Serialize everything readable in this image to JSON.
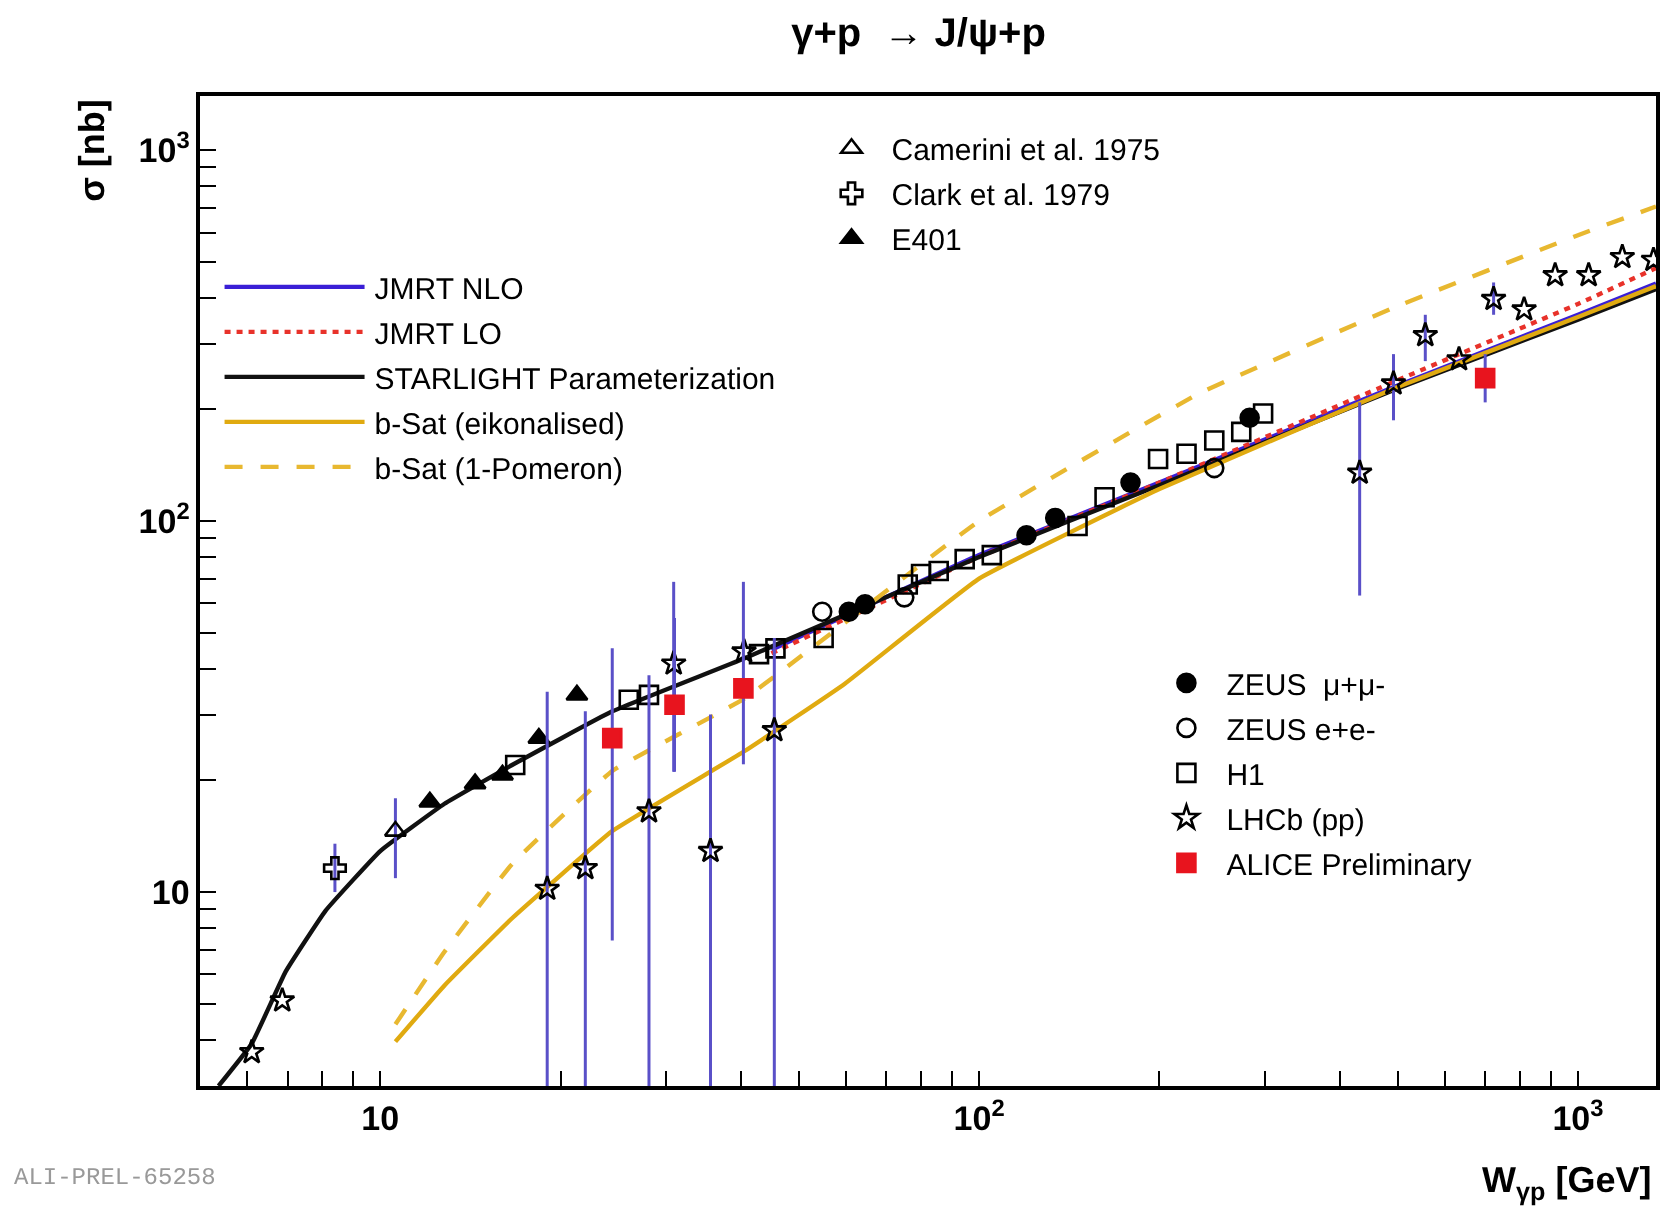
{
  "chart_data": {
    "type": "scatter",
    "title": "γ+p  → J/ψ+p",
    "xlabel": "W$_{γp}$ [GeV]",
    "ylabel": "σ [nb]",
    "log": "xy",
    "legend": "top left",
    "xlim": [
      5,
      1350
    ],
    "ylim": [
      3,
      1400
    ],
    "xticks": [
      {
        "value": 5,
        "label": null
      },
      {
        "value": 6,
        "label": null
      },
      {
        "value": 7,
        "label": null
      },
      {
        "value": 8,
        "label": null
      },
      {
        "value": 9,
        "label": null
      },
      10,
      {
        "value": 20,
        "label": null
      },
      {
        "value": 30,
        "label": null
      },
      {
        "value": 40,
        "label": null
      },
      {
        "value": 50,
        "label": null
      },
      {
        "value": 60,
        "label": null
      },
      {
        "value": 70,
        "label": null
      },
      {
        "value": 80,
        "label": null
      },
      {
        "value": 90,
        "label": null
      },
      {
        "value": 100,
        "label": "10$^{2}$"
      },
      {
        "value": 200,
        "label": null
      },
      {
        "value": 300,
        "label": null
      },
      {
        "value": 400,
        "label": null
      },
      {
        "value": 500,
        "label": null
      },
      {
        "value": 600,
        "label": null
      },
      {
        "value": 700,
        "label": null
      },
      {
        "value": 800,
        "label": null
      },
      {
        "value": 900,
        "label": null
      },
      {
        "value": 1000,
        "label": "10$^{3}$"
      }
    ],
    "yticks": [
      {
        "value": 3,
        "label": null
      },
      {
        "value": 4,
        "label": null
      },
      {
        "value": 5,
        "label": null
      },
      {
        "value": 6,
        "label": null
      },
      {
        "value": 7,
        "label": null
      },
      {
        "value": 8,
        "label": null
      },
      {
        "value": 9,
        "label": null
      },
      10,
      {
        "value": 20,
        "label": null
      },
      {
        "value": 30,
        "label": null
      },
      {
        "value": 40,
        "label": null
      },
      {
        "value": 50,
        "label": null
      },
      {
        "value": 60,
        "label": null
      },
      {
        "value": 70,
        "label": null
      },
      {
        "value": 80,
        "label": null
      },
      {
        "value": 90,
        "label": null
      },
      {
        "value": 100,
        "label": "10$^{2}$"
      },
      {
        "value": 200,
        "label": null
      },
      {
        "value": 300,
        "label": null
      },
      {
        "value": 400,
        "label": null
      },
      {
        "value": 500,
        "label": null
      },
      {
        "value": 600,
        "label": null
      },
      {
        "value": 700,
        "label": null
      },
      {
        "value": 800,
        "label": null
      },
      {
        "value": 900,
        "label": null
      },
      {
        "value": 1000,
        "label": "10$^{3}$"
      }
    ],
    "annotations": [
      "ALI-PREL-65258"
    ],
    "series": [
      {
        "name": "JMRT NLO",
        "type": "line",
        "line_style": "solid",
        "color": "#3a1fd6",
        "x": [
          45,
          100,
          200,
          500,
          1000,
          1350
        ],
        "values": [
          45,
          81,
          127,
          232,
          360,
          437
        ]
      },
      {
        "name": "JMRT LO",
        "type": "line",
        "line_style": "dotted",
        "color": "#e8322a",
        "x": [
          45,
          100,
          200,
          500,
          1000,
          1350
        ],
        "values": [
          44,
          80,
          127,
          240,
          385,
          481
        ]
      },
      {
        "name": "STARLIGHT Parameterization",
        "type": "line",
        "line_style": "solid",
        "color": "#111111",
        "x": [
          5.37,
          6.1,
          6.95,
          8.1,
          10,
          12.8,
          16.6,
          24.4,
          40.6,
          100,
          200,
          500,
          1000,
          1350
        ],
        "values": [
          3.0,
          3.9,
          6.1,
          8.9,
          12.9,
          17.3,
          22.0,
          30.7,
          42.7,
          80,
          125,
          228,
          349,
          422
        ]
      },
      {
        "name": "b-Sat (eikonalised)",
        "type": "line",
        "line_style": "solid",
        "color": "#e0aa10",
        "x": [
          10.6,
          12.8,
          16.6,
          24.4,
          40.6,
          59.6,
          100,
          200,
          500,
          1000,
          1350
        ],
        "values": [
          3.95,
          5.6,
          8.5,
          14.6,
          24.0,
          36.4,
          70,
          122,
          230,
          355,
          430
        ]
      },
      {
        "name": "b-Sat (1-Pomeron)",
        "type": "line",
        "line_style": "dashed",
        "color": "#e8b830",
        "x": [
          10.6,
          12.8,
          16.6,
          24.4,
          40.6,
          100,
          232,
          500,
          1000,
          1350
        ],
        "values": [
          4.4,
          6.9,
          11.9,
          21.2,
          33.3,
          100,
          220,
          380,
          590,
          705
        ]
      },
      {
        "name": "Camerini et al. 1975",
        "marker": "triangle-open",
        "color": "#000000",
        "x": [
          10.6
        ],
        "values": [
          14.6
        ],
        "errors": [
          [
            10.9,
            17.9
          ]
        ]
      },
      {
        "name": "Clark et al. 1979",
        "marker": "cross-open",
        "color": "#000000",
        "x": [
          8.4
        ],
        "values": [
          11.6
        ],
        "errors": [
          [
            10.0,
            13.5
          ]
        ]
      },
      {
        "name": "E401",
        "marker": "triangle",
        "color": "#000000",
        "x": [
          12.1,
          14.4,
          16.0,
          18.4,
          21.3
        ],
        "values": [
          17.5,
          19.6,
          20.7,
          26.0,
          34.0
        ]
      },
      {
        "name": "ZEUS  μ+μ-",
        "marker": "circle",
        "color": "#000000",
        "x": [
          60.6,
          64.5,
          120,
          134,
          179,
          283
        ],
        "values": [
          57,
          59.7,
          91.6,
          102,
          127,
          190
        ]
      },
      {
        "name": "ZEUS e+e-",
        "marker": "circle-open",
        "color": "#000000",
        "x": [
          54.7,
          75,
          247
        ],
        "values": [
          57,
          62.3,
          139
        ]
      },
      {
        "name": "H1",
        "marker": "square-open",
        "color": "#000000",
        "x": [
          16.8,
          26.0,
          28.1,
          42.9,
          45.7,
          55,
          76,
          80,
          85.6,
          94.6,
          105,
          146,
          162,
          199,
          222,
          247,
          274,
          298
        ],
        "values": [
          22,
          33,
          34,
          43.8,
          45.4,
          48.4,
          67.5,
          72,
          73.4,
          79,
          81,
          97,
          116,
          147,
          152,
          165,
          174,
          195
        ]
      },
      {
        "name": "LHCb (pp)",
        "marker": "star-open",
        "color": "#000000",
        "x": [
          6.1,
          6.86,
          19.0,
          22.0,
          28.1,
          30.9,
          35.6,
          40.5,
          45.5,
          432,
          492,
          556,
          633,
          723,
          813,
          916,
          1042,
          1186,
          1337
        ],
        "values": [
          3.7,
          5.1,
          10.2,
          11.6,
          16.5,
          41.3,
          12.9,
          44.5,
          27.3,
          135,
          235,
          317,
          273,
          397,
          372,
          460,
          460,
          515,
          506
        ],
        "errors": [
          null,
          null,
          [
            3,
            34.7
          ],
          [
            3,
            30.7
          ],
          [
            3,
            38.4
          ],
          [
            21.1,
            68.6
          ],
          [
            3,
            30.1
          ],
          null,
          [
            3,
            48.4
          ],
          [
            63,
            209
          ],
          [
            187,
            282
          ],
          [
            270,
            360
          ],
          null,
          [
            360,
            440
          ],
          null,
          null,
          null,
          null,
          null
        ]
      },
      {
        "name": "ALICE Preliminary",
        "marker": "square",
        "color": "#e8141e",
        "x": [
          24.4,
          31.0,
          40.4,
          700
        ],
        "values": [
          26.0,
          32.0,
          35.4,
          243
        ],
        "errors": [
          [
            7.4,
            45.4
          ],
          [
            21.1,
            54.8
          ],
          [
            22.1,
            68.6
          ],
          [
            209,
            282
          ]
        ]
      }
    ]
  }
}
